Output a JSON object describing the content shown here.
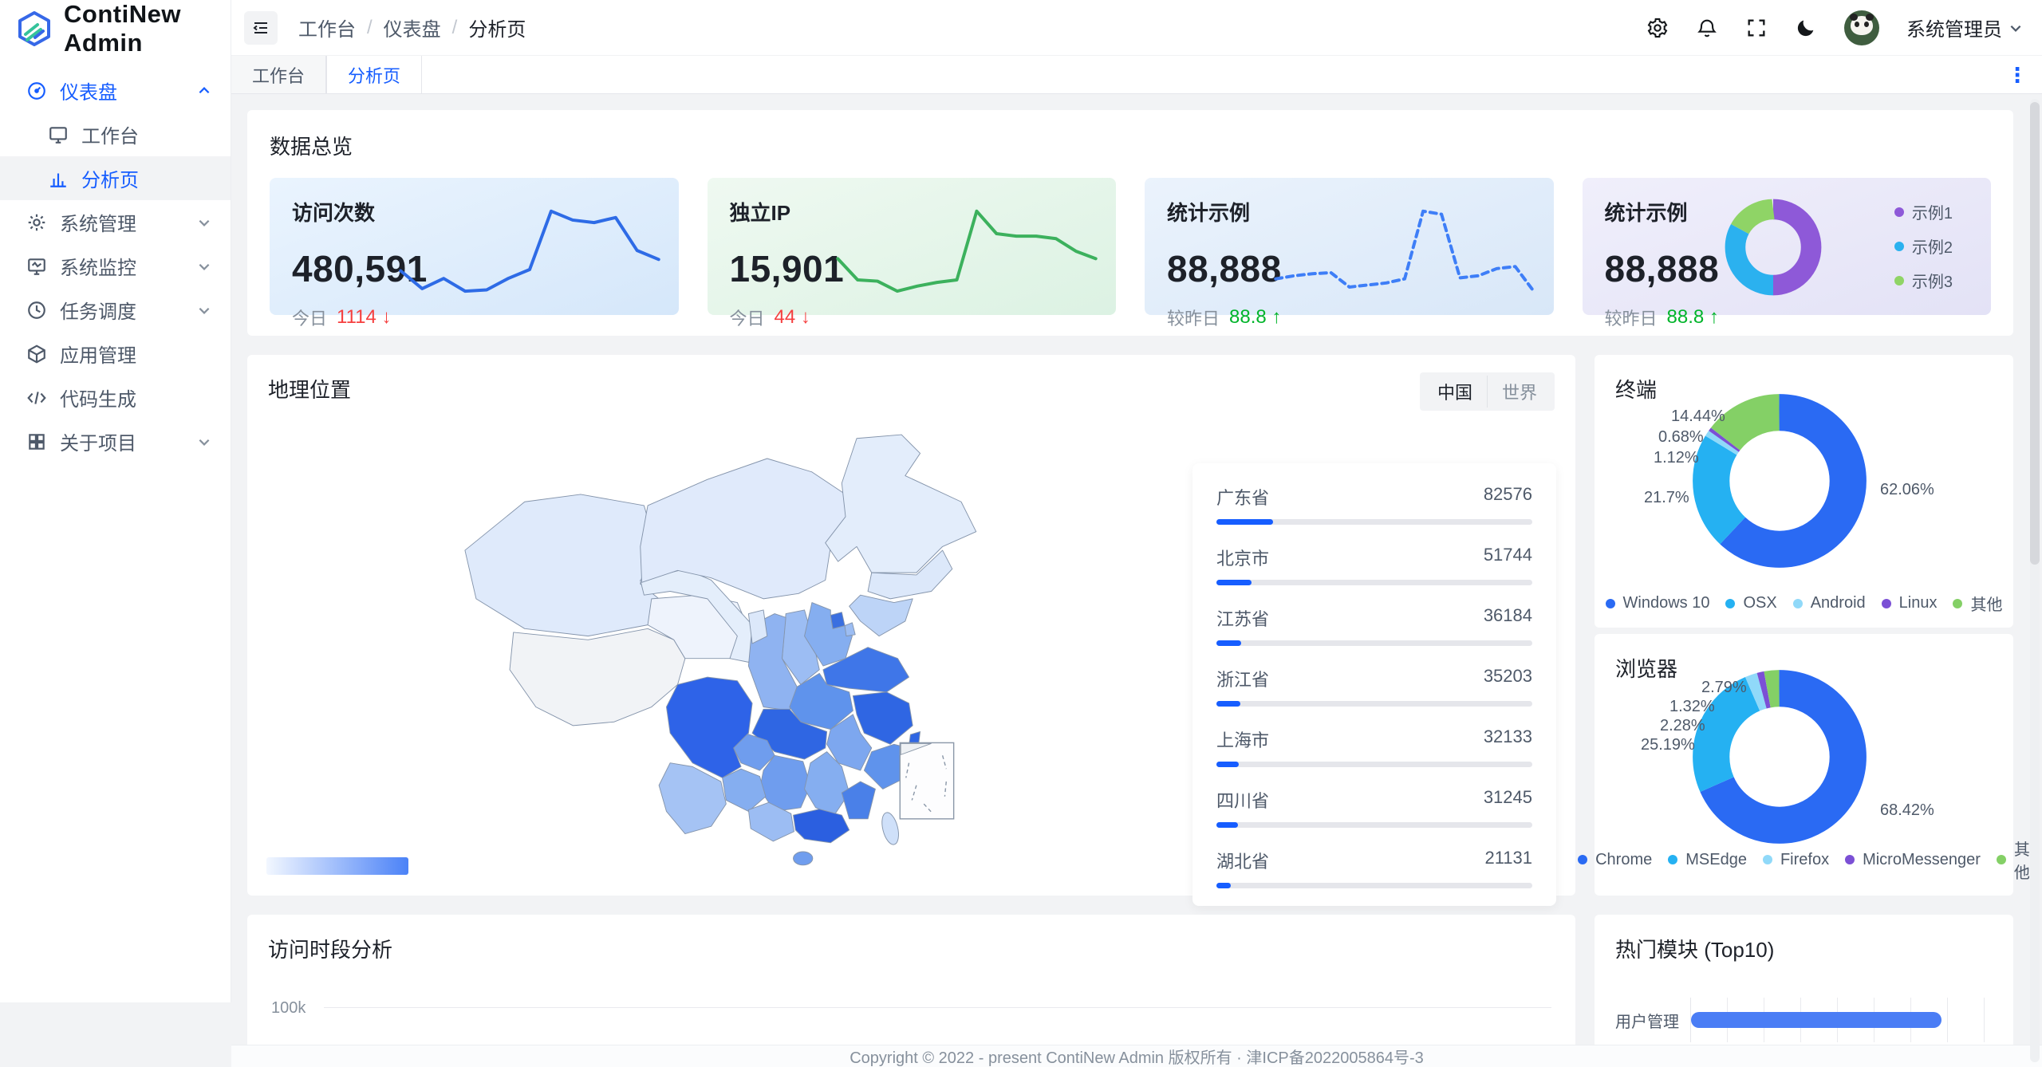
{
  "app": {
    "name": "ContiNew Admin"
  },
  "sidebar": {
    "items": [
      {
        "label": "仪表盘",
        "icon": "gauge-icon"
      },
      {
        "label": "工作台",
        "icon": "monitor-icon"
      },
      {
        "label": "分析页",
        "icon": "bar-chart-icon"
      },
      {
        "label": "系统管理",
        "icon": "gear-icon"
      },
      {
        "label": "系统监控",
        "icon": "monitor-pulse-icon"
      },
      {
        "label": "任务调度",
        "icon": "clock-icon"
      },
      {
        "label": "应用管理",
        "icon": "cube-icon"
      },
      {
        "label": "代码生成",
        "icon": "code-icon"
      },
      {
        "label": "关于项目",
        "icon": "grid-icon"
      }
    ]
  },
  "header": {
    "breadcrumb": [
      "工作台",
      "仪表盘",
      "分析页"
    ],
    "username": "系统管理员"
  },
  "tabs": {
    "items": [
      {
        "label": "工作台"
      },
      {
        "label": "分析页"
      }
    ]
  },
  "overview": {
    "title": "数据总览",
    "cards": [
      {
        "title": "访问次数",
        "value": "480,591",
        "sub_label": "今日",
        "sub_value": "1114",
        "trend": "down",
        "arrow": "↓",
        "chart": {
          "type": "line",
          "color": "#2e6be6",
          "dashed": false,
          "values": [
            46,
            32,
            40,
            30,
            31,
            40,
            47,
            93,
            86,
            84,
            88,
            62,
            55
          ]
        }
      },
      {
        "title": "独立IP",
        "value": "15,901",
        "sub_label": "今日",
        "sub_value": "44",
        "trend": "down",
        "arrow": "↓",
        "chart": {
          "type": "line",
          "color": "#3cb15d",
          "dashed": false,
          "values": [
            52,
            35,
            34,
            26,
            30,
            33,
            35,
            90,
            72,
            70,
            70,
            68,
            58,
            52
          ]
        }
      },
      {
        "title": "统计示例",
        "value": "88,888",
        "sub_label": "较昨日",
        "sub_value": "88.8",
        "trend": "up",
        "arrow": "↑",
        "chart": {
          "type": "line",
          "color": "#3e7ef7",
          "dashed": true,
          "values": [
            30,
            33,
            35,
            36,
            22,
            24,
            26,
            30,
            96,
            93,
            31,
            33,
            40,
            42,
            18
          ]
        }
      },
      {
        "title": "统计示例",
        "value": "88,888",
        "sub_label": "较昨日",
        "sub_value": "88.8",
        "trend": "up",
        "arrow": "↑",
        "chart": {
          "type": "donut",
          "segments": [
            {
              "label": "示例1",
              "color": "#8e59d8",
              "pct": 50
            },
            {
              "label": "示例2",
              "color": "#2bb1ef",
              "pct": 33
            },
            {
              "label": "示例3",
              "color": "#8fd466",
              "pct": 17
            }
          ]
        }
      }
    ]
  },
  "geo": {
    "title": "地理位置",
    "toggle": [
      {
        "label": "中国"
      },
      {
        "label": "世界"
      }
    ],
    "provinces": [
      {
        "name": "广东省",
        "value": "82576",
        "pct": 18
      },
      {
        "name": "北京市",
        "value": "51744",
        "pct": 11.2
      },
      {
        "name": "江苏省",
        "value": "36184",
        "pct": 7.9
      },
      {
        "name": "浙江省",
        "value": "35203",
        "pct": 7.7
      },
      {
        "name": "上海市",
        "value": "32133",
        "pct": 7.0
      },
      {
        "name": "四川省",
        "value": "31245",
        "pct": 6.8
      },
      {
        "name": "湖北省",
        "value": "21131",
        "pct": 4.6
      }
    ]
  },
  "terminal": {
    "title": "终端",
    "chart": {
      "type": "donut",
      "segments": [
        {
          "label": "Windows 10",
          "color": "#2a6af3",
          "pct": 62.06
        },
        {
          "label": "OSX",
          "color": "#25b1f2",
          "pct": 21.7
        },
        {
          "label": "Android",
          "color": "#90d9f9",
          "pct": 1.12
        },
        {
          "label": "Linux",
          "color": "#7b50d5",
          "pct": 0.68
        },
        {
          "label": "其他",
          "color": "#84d066",
          "pct": 14.44
        }
      ]
    },
    "callouts": [
      "62.06%",
      "21.7%",
      "1.12%",
      "0.68%",
      "14.44%"
    ]
  },
  "browser": {
    "title": "浏览器",
    "chart": {
      "type": "donut",
      "segments": [
        {
          "label": "Chrome",
          "color": "#2a6af3",
          "pct": 68.42
        },
        {
          "label": "MSEdge",
          "color": "#25b1f2",
          "pct": 25.19
        },
        {
          "label": "Firefox",
          "color": "#90d9f9",
          "pct": 2.28
        },
        {
          "label": "MicroMessenger",
          "color": "#7b50d5",
          "pct": 1.32
        },
        {
          "label": "其他",
          "color": "#84d066",
          "pct": 2.79
        }
      ]
    },
    "callouts": [
      "68.42%",
      "25.19%",
      "2.28%",
      "1.32%",
      "2.79%"
    ]
  },
  "time_analysis": {
    "title": "访问时段分析",
    "y_tick": "100k"
  },
  "hot_modules": {
    "title": "热门模块 (Top10)",
    "rows": [
      {
        "label": "用户管理",
        "pct": 83
      }
    ]
  },
  "footer": {
    "text": "Copyright © 2022 - present ContiNew Admin 版权所有 · 津ICP备2022005864号-3"
  },
  "colors": {
    "primary": "#165dff",
    "red": "#f53f3f",
    "green": "#00b42a"
  }
}
